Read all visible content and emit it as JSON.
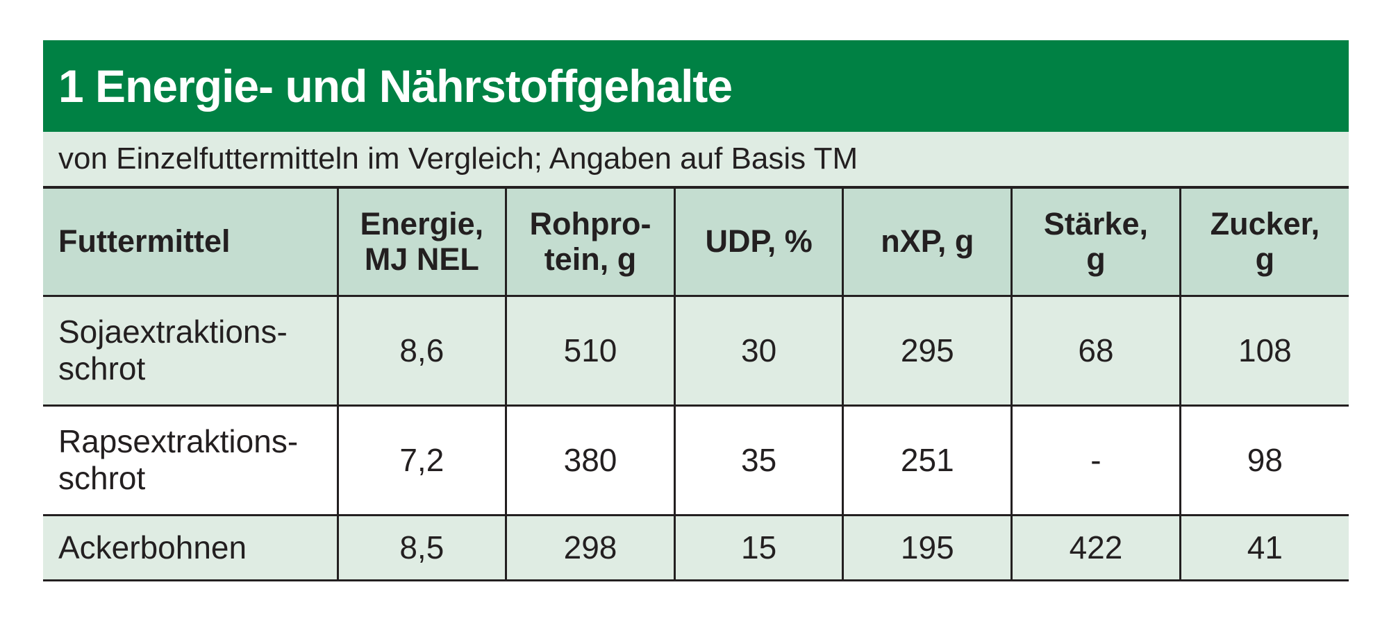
{
  "table": {
    "title": "1 Energie- und Nährstoffgehalte",
    "subtitle": "von Einzelfuttermitteln im Vergleich; Angaben auf Basis TM",
    "colors": {
      "title_bg": "#008144",
      "subtitle_bg": "#dfece3",
      "header_bg": "#c4ddd0",
      "row_shade": "#dfece3"
    },
    "headers": [
      [
        "Futtermittel"
      ],
      [
        "Energie,",
        "MJ NEL"
      ],
      [
        "Rohpro-",
        "tein, g"
      ],
      [
        "UDP, %"
      ],
      [
        "nXP, g"
      ],
      [
        "Stärke,",
        "g"
      ],
      [
        "Zucker,",
        "g"
      ]
    ],
    "rows": [
      {
        "name": [
          "Sojaextraktions-",
          "schrot"
        ],
        "values": [
          "8,6",
          "510",
          "30",
          "295",
          "68",
          "108"
        ]
      },
      {
        "name": [
          "Rapsextraktions-",
          "schrot"
        ],
        "values": [
          "7,2",
          "380",
          "35",
          "251",
          "-",
          "98"
        ]
      },
      {
        "name": [
          "Ackerbohnen"
        ],
        "values": [
          "8,5",
          "298",
          "15",
          "195",
          "422",
          "41"
        ]
      }
    ]
  }
}
